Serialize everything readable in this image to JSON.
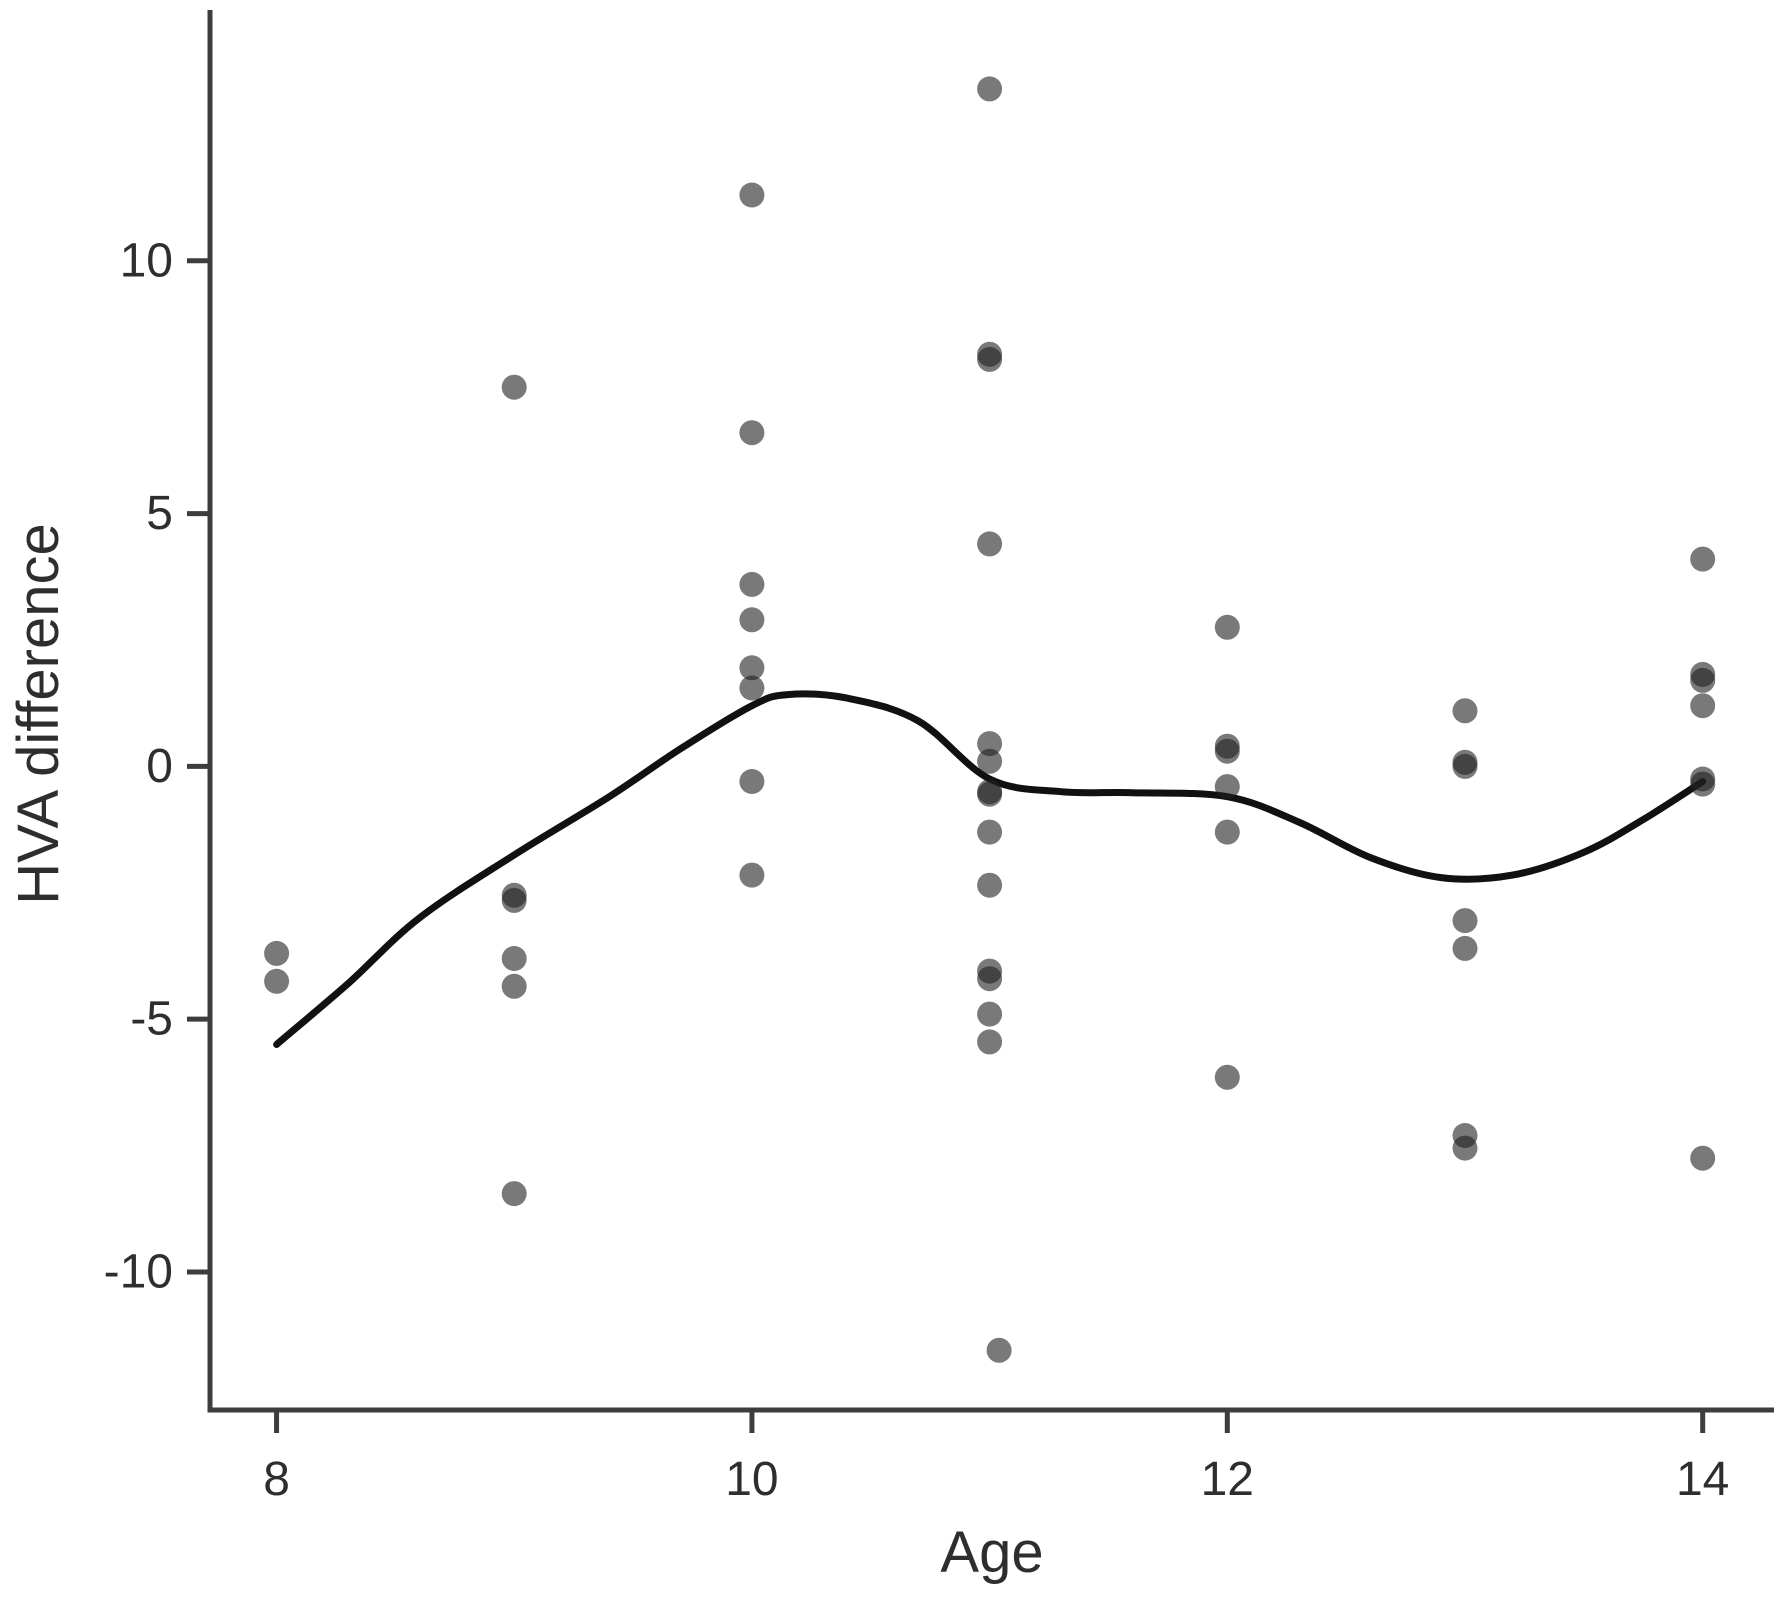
{
  "chart_data": {
    "type": "scatter",
    "title": "",
    "xlabel": "Age",
    "ylabel": "HVA difference",
    "xlim": [
      7.72,
      14.3
    ],
    "ylim": [
      -12.73,
      14.96
    ],
    "x_ticks": [
      "8",
      "10",
      "12",
      "14"
    ],
    "x_tick_values": [
      8,
      10,
      12,
      14
    ],
    "y_ticks": [
      "10",
      "5",
      "0",
      "-5",
      "-10"
    ],
    "y_tick_values": [
      10,
      5,
      0,
      -5,
      -10
    ],
    "grid": false,
    "legend": "none",
    "point_style": {
      "radius": 12.5,
      "color": "#1f1f1f",
      "opacity": 0.6
    },
    "line_style": {
      "color": "#111111",
      "width": 7
    },
    "axis_color": "#3d3d3d",
    "text_color": "#2e2e2e",
    "background": "#ffffff",
    "points": [
      {
        "x": 8,
        "y": -3.7
      },
      {
        "x": 8,
        "y": -4.25
      },
      {
        "x": 9,
        "y": 7.5
      },
      {
        "x": 9,
        "y": -2.55
      },
      {
        "x": 9,
        "y": -2.65
      },
      {
        "x": 9,
        "y": -3.8
      },
      {
        "x": 9,
        "y": -4.35
      },
      {
        "x": 9,
        "y": -8.45
      },
      {
        "x": 10,
        "y": 11.3
      },
      {
        "x": 10,
        "y": 6.6
      },
      {
        "x": 10,
        "y": 3.6
      },
      {
        "x": 10,
        "y": 2.9
      },
      {
        "x": 10,
        "y": 1.95
      },
      {
        "x": 10,
        "y": 1.55
      },
      {
        "x": 10,
        "y": -0.3
      },
      {
        "x": 10,
        "y": -2.15
      },
      {
        "x": 11,
        "y": 13.4
      },
      {
        "x": 11,
        "y": 8.05
      },
      {
        "x": 11,
        "y": 8.15
      },
      {
        "x": 11,
        "y": 4.4
      },
      {
        "x": 11,
        "y": 0.45
      },
      {
        "x": 11,
        "y": 0.1
      },
      {
        "x": 11,
        "y": -0.5
      },
      {
        "x": 11,
        "y": -0.55
      },
      {
        "x": 11,
        "y": -1.3
      },
      {
        "x": 11,
        "y": -2.35
      },
      {
        "x": 11,
        "y": -4.05
      },
      {
        "x": 11,
        "y": -4.2
      },
      {
        "x": 11,
        "y": -4.9
      },
      {
        "x": 11,
        "y": -5.45
      },
      {
        "x": 11.04,
        "y": -11.55
      },
      {
        "x": 12,
        "y": 2.75
      },
      {
        "x": 12,
        "y": 0.3
      },
      {
        "x": 12,
        "y": 0.4
      },
      {
        "x": 12,
        "y": -0.4
      },
      {
        "x": 12,
        "y": -1.3
      },
      {
        "x": 12,
        "y": -6.15
      },
      {
        "x": 13,
        "y": 1.1
      },
      {
        "x": 13,
        "y": 0.0
      },
      {
        "x": 13,
        "y": 0.08
      },
      {
        "x": 13,
        "y": -3.05
      },
      {
        "x": 13,
        "y": -3.6
      },
      {
        "x": 13,
        "y": -7.3
      },
      {
        "x": 13,
        "y": -7.55
      },
      {
        "x": 14,
        "y": 4.1
      },
      {
        "x": 14,
        "y": 1.7
      },
      {
        "x": 14,
        "y": 1.82
      },
      {
        "x": 14,
        "y": 1.2
      },
      {
        "x": 14,
        "y": -0.25
      },
      {
        "x": 14,
        "y": -0.35
      },
      {
        "x": 14,
        "y": -7.75
      }
    ],
    "smooth_line": [
      [
        8.0,
        -5.5
      ],
      [
        8.3,
        -4.3
      ],
      [
        8.6,
        -3.0
      ],
      [
        9.0,
        -1.75
      ],
      [
        9.4,
        -0.6
      ],
      [
        9.7,
        0.35
      ],
      [
        10.0,
        1.2
      ],
      [
        10.15,
        1.42
      ],
      [
        10.4,
        1.35
      ],
      [
        10.7,
        0.9
      ],
      [
        11.0,
        -0.25
      ],
      [
        11.3,
        -0.5
      ],
      [
        11.6,
        -0.52
      ],
      [
        12.0,
        -0.6
      ],
      [
        12.3,
        -1.1
      ],
      [
        12.6,
        -1.8
      ],
      [
        12.9,
        -2.2
      ],
      [
        13.2,
        -2.15
      ],
      [
        13.5,
        -1.7
      ],
      [
        13.75,
        -1.05
      ],
      [
        14.0,
        -0.3
      ]
    ]
  }
}
